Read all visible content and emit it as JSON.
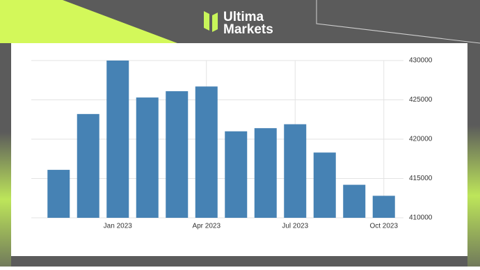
{
  "brand": {
    "line1": "Ultima",
    "line2": "Markets"
  },
  "chart_data": {
    "type": "bar",
    "categories": [
      null,
      null,
      "Jan 2023",
      null,
      null,
      "Apr 2023",
      null,
      null,
      "Jul 2023",
      null,
      null,
      "Oct 2023"
    ],
    "values": [
      416100,
      423200,
      430000,
      425300,
      426100,
      426700,
      421000,
      421400,
      421900,
      418300,
      414200,
      412800
    ],
    "color": "#4682b4",
    "ylim": [
      410000,
      430000
    ],
    "yticks": [
      410000,
      415000,
      420000,
      425000,
      430000
    ],
    "grid": true
  }
}
